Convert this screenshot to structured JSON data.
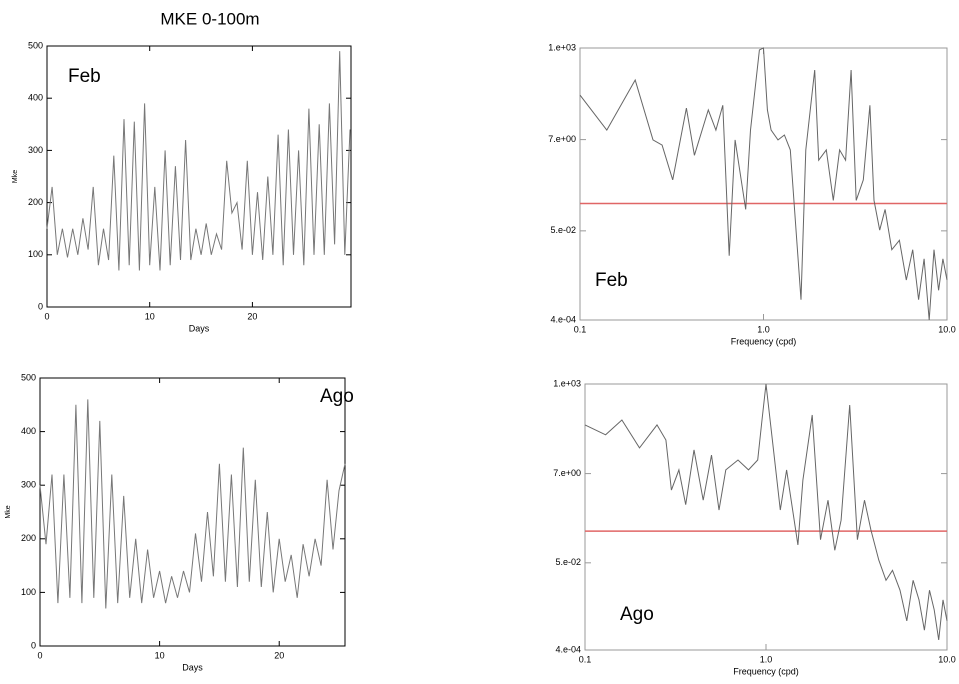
{
  "title": "MKE 0-100m",
  "chart_data": [
    {
      "type": "line",
      "annotation": "Feb",
      "xlabel": "Days",
      "ylabel": "Mke",
      "color": "#777777",
      "x": [
        0,
        0.5,
        1,
        1.5,
        2,
        2.5,
        3,
        3.5,
        4,
        4.5,
        5,
        5.5,
        6,
        6.5,
        7,
        7.5,
        8,
        8.5,
        9,
        9.5,
        10,
        10.5,
        11,
        11.5,
        12,
        12.5,
        13,
        13.5,
        14,
        14.5,
        15,
        15.5,
        16,
        16.5,
        17,
        17.5,
        18,
        18.5,
        19,
        19.5,
        20,
        20.5,
        21,
        21.5,
        22,
        22.5,
        23,
        23.5,
        24,
        24.5,
        25,
        25.5,
        26,
        26.5,
        27,
        27.5,
        28,
        28.5,
        29,
        29.5
      ],
      "values": [
        150,
        230,
        100,
        150,
        95,
        150,
        100,
        170,
        110,
        230,
        80,
        150,
        90,
        290,
        70,
        360,
        80,
        355,
        70,
        390,
        80,
        230,
        70,
        300,
        80,
        270,
        90,
        320,
        90,
        150,
        100,
        160,
        100,
        140,
        110,
        280,
        180,
        200,
        110,
        280,
        100,
        220,
        90,
        250,
        100,
        330,
        80,
        340,
        100,
        300,
        80,
        380,
        100,
        350,
        100,
        390,
        120,
        490,
        100,
        340
      ],
      "xlim": [
        0,
        29.6
      ],
      "ylim": [
        0,
        500
      ],
      "xticks": [
        0,
        10,
        20
      ],
      "yticks": [
        0,
        100,
        200,
        300,
        400,
        500
      ]
    },
    {
      "type": "line",
      "annotation": "Feb",
      "xlabel": "Frequency (cpd)",
      "color": "#666666",
      "xscale": "log",
      "yscale": "log",
      "x": [
        0.1,
        0.14,
        0.2,
        0.25,
        0.28,
        0.32,
        0.38,
        0.42,
        0.5,
        0.55,
        0.6,
        0.65,
        0.7,
        0.8,
        0.85,
        0.95,
        1.0,
        1.05,
        1.1,
        1.2,
        1.3,
        1.4,
        1.6,
        1.7,
        1.9,
        2.0,
        2.2,
        2.4,
        2.6,
        2.8,
        3.0,
        3.2,
        3.5,
        3.8,
        4.0,
        4.3,
        4.6,
        5.0,
        5.5,
        6,
        6.5,
        7,
        7.5,
        8,
        8.5,
        9,
        9.5,
        10
      ],
      "values": [
        78,
        11.7,
        177,
        6.9,
        5.2,
        0.79,
        38.5,
        3,
        35,
        11.7,
        45,
        0.013,
        6.9,
        0.16,
        11.7,
        900,
        1000,
        35,
        11.7,
        6.9,
        9,
        4,
        0.0012,
        4,
        303,
        2.3,
        4,
        0.26,
        4,
        2.3,
        303,
        0.26,
        0.79,
        45,
        0.26,
        0.052,
        0.16,
        0.018,
        0.03,
        0.0035,
        0.018,
        0.0012,
        0.011,
        0.0004,
        0.018,
        0.002,
        0.011,
        0.0035
      ],
      "xlim": [
        0.1,
        10
      ],
      "ylim": [
        0.0004,
        1000
      ],
      "xticks": [
        0.1,
        {
          "value": 1,
          "label": "1.0"
        },
        {
          "value": 10,
          "label": "10.0"
        }
      ],
      "yticks": [
        {
          "value": 0.0004,
          "label": "4.e-04"
        },
        {
          "value": 0.05,
          "label": "5.e-02"
        },
        {
          "value": 7,
          "label": "7.e+00"
        },
        {
          "value": 1000,
          "label": "1.e+03"
        }
      ],
      "reference_line": {
        "value": 0.22,
        "color": "#e06666"
      }
    },
    {
      "type": "line",
      "annotation": "Ago",
      "xlabel": "Days",
      "ylabel": "Mke",
      "color": "#777777",
      "x": [
        0,
        0.5,
        1,
        1.5,
        2,
        2.5,
        3,
        3.5,
        4,
        4.5,
        5,
        5.5,
        6,
        6.5,
        7,
        7.5,
        8,
        8.5,
        9,
        9.5,
        10,
        10.5,
        11,
        11.5,
        12,
        12.5,
        13,
        13.5,
        14,
        14.5,
        15,
        15.5,
        16,
        16.5,
        17,
        17.5,
        18,
        18.5,
        19,
        19.5,
        20,
        20.5,
        21,
        21.5,
        22,
        22.5,
        23,
        23.5,
        24,
        24.5,
        25,
        25.5
      ],
      "values": [
        300,
        190,
        320,
        80,
        320,
        90,
        450,
        80,
        460,
        90,
        420,
        70,
        320,
        80,
        280,
        90,
        200,
        80,
        180,
        90,
        140,
        80,
        130,
        90,
        140,
        100,
        210,
        120,
        250,
        130,
        340,
        120,
        320,
        110,
        370,
        120,
        310,
        110,
        250,
        100,
        200,
        120,
        170,
        90,
        190,
        130,
        200,
        150,
        310,
        180,
        290,
        340
      ],
      "xlim": [
        0,
        25.5
      ],
      "ylim": [
        0,
        500
      ],
      "xticks": [
        0,
        10,
        20
      ],
      "yticks": [
        0,
        100,
        200,
        300,
        400,
        500
      ]
    },
    {
      "type": "line",
      "annotation": "Ago",
      "xlabel": "Frequency (cpd)",
      "color": "#666666",
      "xscale": "log",
      "yscale": "log",
      "x": [
        0.1,
        0.13,
        0.16,
        0.2,
        0.25,
        0.28,
        0.3,
        0.33,
        0.36,
        0.4,
        0.45,
        0.5,
        0.55,
        0.6,
        0.7,
        0.8,
        0.9,
        0.95,
        1.0,
        1.1,
        1.2,
        1.3,
        1.5,
        1.6,
        1.8,
        2.0,
        2.2,
        2.4,
        2.6,
        2.9,
        3.2,
        3.5,
        3.8,
        4.2,
        4.6,
        5.0,
        5.5,
        6,
        6.5,
        7,
        7.5,
        8,
        8.5,
        9,
        9.5,
        10
      ],
      "values": [
        104,
        60,
        136,
        29,
        104,
        45,
        2.8,
        8.6,
        1.25,
        26,
        1.6,
        19.5,
        0.93,
        8.6,
        14.9,
        8.6,
        14.9,
        136,
        1000,
        26,
        0.93,
        8.6,
        0.135,
        4.9,
        180,
        0.18,
        1.6,
        0.1,
        0.53,
        313,
        0.18,
        1.6,
        0.31,
        0.058,
        0.019,
        0.033,
        0.011,
        0.002,
        0.019,
        0.0064,
        0.0012,
        0.011,
        0.0037,
        0.0007,
        0.0064,
        0.002
      ],
      "xlim": [
        0.1,
        10
      ],
      "ylim": [
        0.0004,
        1000
      ],
      "xticks": [
        0.1,
        {
          "value": 1,
          "label": "1.0"
        },
        {
          "value": 10,
          "label": "10.0"
        }
      ],
      "yticks": [
        {
          "value": 0.0004,
          "label": "4.e-04"
        },
        {
          "value": 0.05,
          "label": "5.e-02"
        },
        {
          "value": 7,
          "label": "7.e+00"
        },
        {
          "value": 1000,
          "label": "1.e+03"
        }
      ],
      "reference_line": {
        "value": 0.29,
        "color": "#e06666"
      }
    }
  ]
}
